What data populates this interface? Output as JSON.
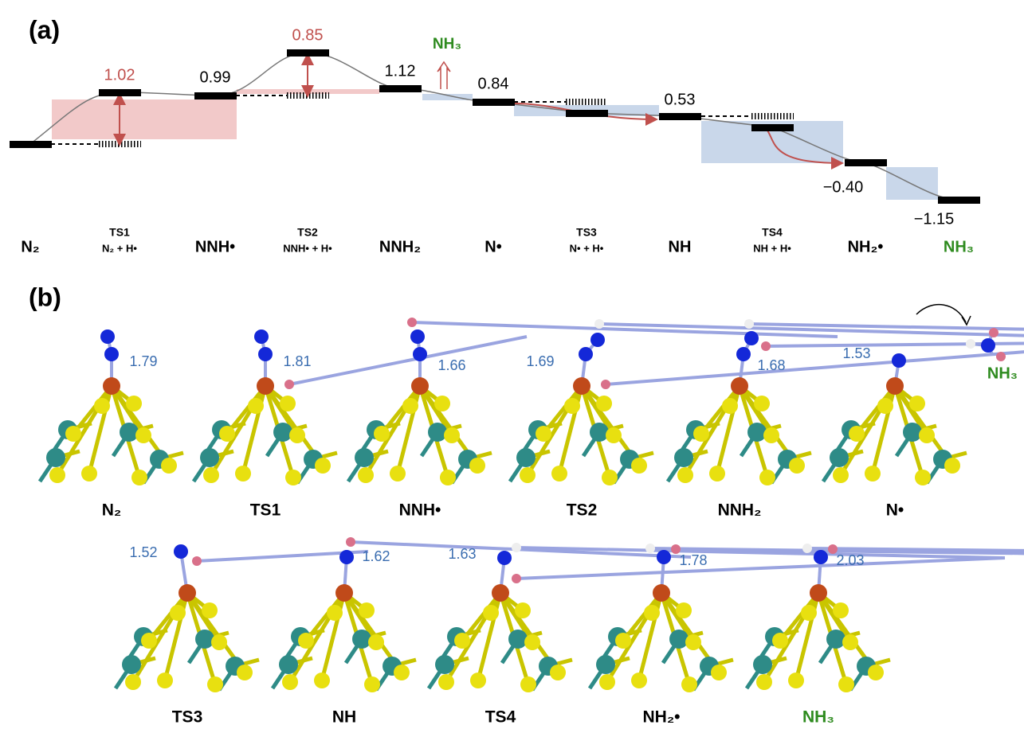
{
  "panel_a": {
    "label": "(a)",
    "levels": [
      {
        "name": "N₂"
      },
      {
        "name": "TS1",
        "sub": "N₂ + H•",
        "value": "1.02"
      },
      {
        "name": "NNH•",
        "value": "0.99"
      },
      {
        "name": "TS2",
        "sub": "NNH• + H•",
        "value": "0.85"
      },
      {
        "name": "NNH₂",
        "value": "1.12"
      },
      {
        "name": "N•",
        "value": "0.84"
      },
      {
        "name": "TS3",
        "sub": "N• + H•"
      },
      {
        "name": "NH",
        "value": "0.53"
      },
      {
        "name": "TS4",
        "sub": "NH + H•"
      },
      {
        "name": "NH₂•",
        "value": "−0.40"
      },
      {
        "name": "NH₃",
        "value": "−1.15"
      }
    ],
    "released": "NH₃"
  },
  "panel_b": {
    "label": "(b)",
    "structures": [
      {
        "name": "N₂",
        "bond": "1.79"
      },
      {
        "name": "TS1",
        "bond": "1.81"
      },
      {
        "name": "NNH•",
        "bond": "1.66"
      },
      {
        "name": "TS2",
        "bond": "1.69"
      },
      {
        "name": "NNH₂",
        "bond": "1.68"
      },
      {
        "name": "N•",
        "bond": "1.53"
      },
      {
        "name": "TS3",
        "bond": "1.52"
      },
      {
        "name": "NH",
        "bond": "1.62"
      },
      {
        "name": "TS4",
        "bond": "1.63"
      },
      {
        "name": "NH₂•",
        "bond": "1.78"
      },
      {
        "name": "NH₃",
        "bond": "2.03"
      }
    ],
    "released": "NH₃"
  }
}
